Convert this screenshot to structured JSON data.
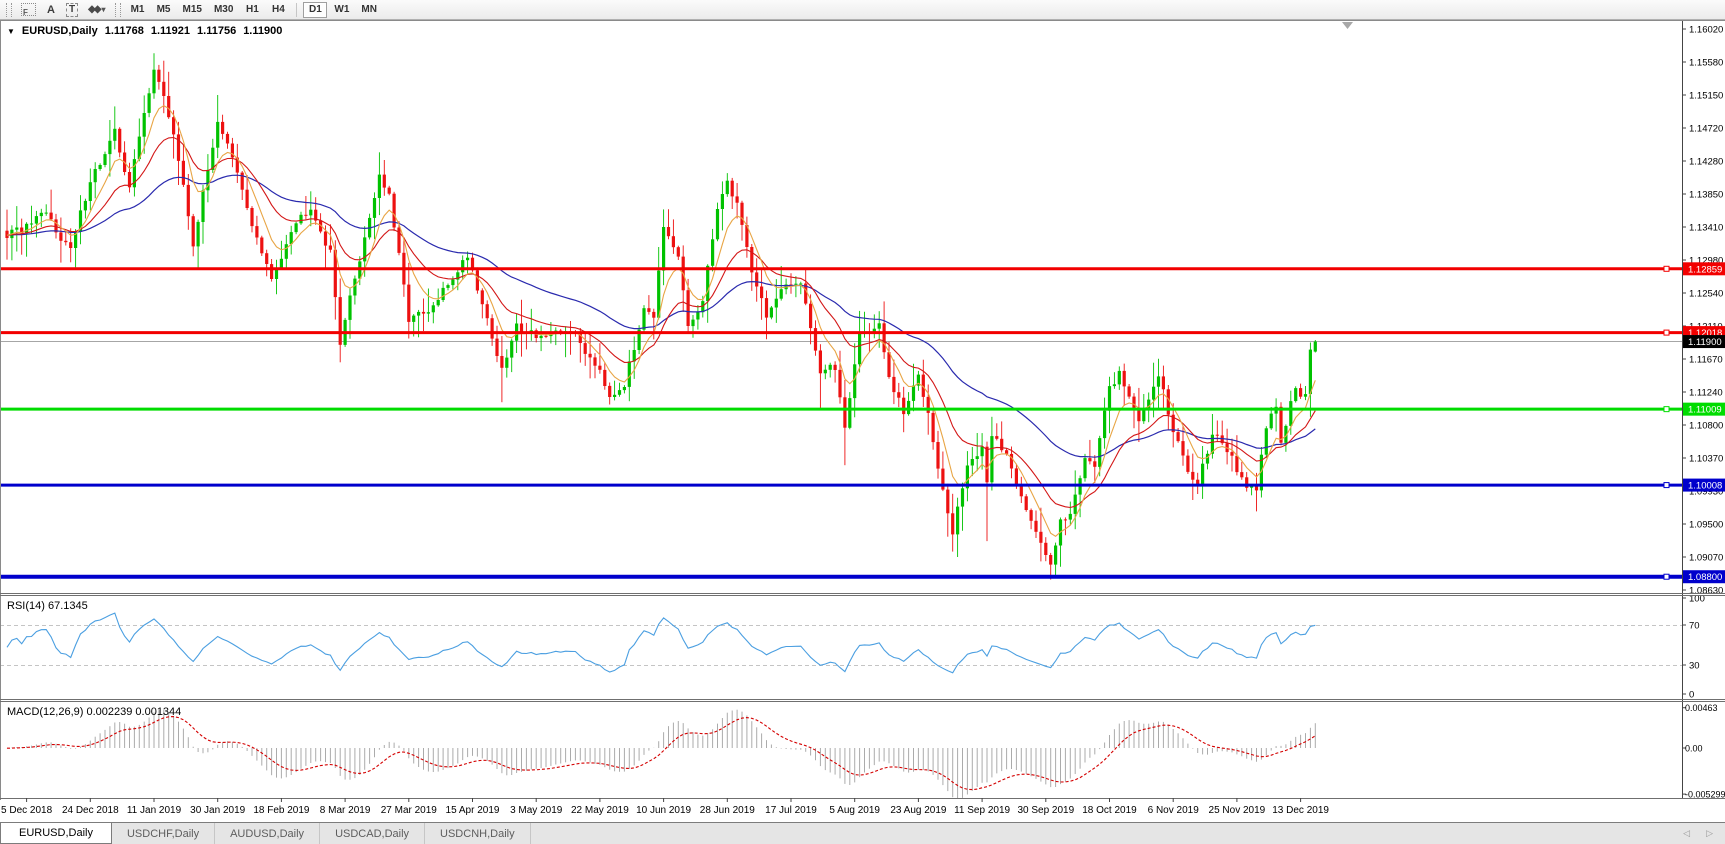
{
  "toolbar": {
    "f_icon": "F",
    "a_label": "A",
    "t_label": "T",
    "styler_icon": "◆◆",
    "styler_caret": "▾",
    "timeframes": [
      "M1",
      "M5",
      "M15",
      "M30",
      "H1",
      "H4",
      "D1",
      "W1",
      "MN"
    ],
    "active_timeframe": "D1"
  },
  "chart": {
    "collapse_icon": "▼",
    "symbol_title": "EURUSD,Daily",
    "ohlc": {
      "open": "1.11768",
      "high": "1.11921",
      "low": "1.11756",
      "close": "1.11900"
    },
    "colors": {
      "candle_up": "#00c200",
      "candle_down": "#ed1111",
      "ma_fast": "#e8a545",
      "ma_mid": "#d31717",
      "ma_slow": "#2a2aae",
      "macd_signal": "#d40000",
      "macd_hist": "#ababab",
      "current_line": "#a6a6a6",
      "current_badge_bg": "#000000"
    },
    "price_axis": {
      "top_price": 1.1602,
      "tick_step": 0.00435,
      "ticks": [
        "1.16020",
        "1.15580",
        "1.15150",
        "1.14720",
        "1.14280",
        "1.13850",
        "1.13410",
        "1.12980",
        "1.12540",
        "1.12110",
        "1.11670",
        "1.11240",
        "1.10800",
        "1.10370",
        "1.09930",
        "1.09500",
        "1.09070",
        "1.08630"
      ]
    },
    "hlines": [
      {
        "label": "1.12859",
        "price": 1.12859,
        "color": "#f20000",
        "width": 3
      },
      {
        "label": "1.12018",
        "price": 1.12018,
        "color": "#f20000",
        "width": 3
      },
      {
        "label": "1.11009",
        "price": 1.11009,
        "color": "#00dc00",
        "width": 3
      },
      {
        "label": "1.10008",
        "price": 1.10008,
        "color": "#0000cc",
        "width": 3
      },
      {
        "label": "1.08800",
        "price": 1.088,
        "color": "#0000cc",
        "width": 4
      }
    ],
    "current_price": {
      "label": "1.11900",
      "price": 1.119
    },
    "dates": [
      "5 Dec 2018",
      "24 Dec 2018",
      "11 Jan 2019",
      "30 Jan 2019",
      "18 Feb 2019",
      "8 Mar 2019",
      "27 Mar 2019",
      "15 Apr 2019",
      "3 May 2019",
      "22 May 2019",
      "10 Jun 2019",
      "28 Jun 2019",
      "17 Jul 2019",
      "5 Aug 2019",
      "23 Aug 2019",
      "11 Sep 2019",
      "30 Sep 2019",
      "18 Oct 2019",
      "6 Nov 2019",
      "25 Nov 2019",
      "13 Dec 2019"
    ],
    "candles": {
      "count": 268,
      "anchors": [
        [
          0,
          1.133
        ],
        [
          4,
          1.134
        ],
        [
          8,
          1.1358
        ],
        [
          13,
          1.131
        ],
        [
          17,
          1.1405
        ],
        [
          20,
          1.1436
        ],
        [
          22,
          1.1465
        ],
        [
          25,
          1.1395
        ],
        [
          30,
          1.1553
        ],
        [
          34,
          1.1465
        ],
        [
          38,
          1.132
        ],
        [
          41,
          1.1415
        ],
        [
          43,
          1.1483
        ],
        [
          46,
          1.143
        ],
        [
          51,
          1.1325
        ],
        [
          54,
          1.127
        ],
        [
          58,
          1.134
        ],
        [
          62,
          1.137
        ],
        [
          66,
          1.1305
        ],
        [
          68,
          1.1192
        ],
        [
          72,
          1.13
        ],
        [
          76,
          1.141
        ],
        [
          78,
          1.138
        ],
        [
          82,
          1.1222
        ],
        [
          86,
          1.1226
        ],
        [
          90,
          1.1265
        ],
        [
          94,
          1.1305
        ],
        [
          98,
          1.122
        ],
        [
          101,
          1.115
        ],
        [
          104,
          1.121
        ],
        [
          108,
          1.12
        ],
        [
          111,
          1.1195
        ],
        [
          115,
          1.1207
        ],
        [
          118,
          1.1178
        ],
        [
          121,
          1.1155
        ],
        [
          123,
          1.112
        ],
        [
          126,
          1.1135
        ],
        [
          128,
          1.118
        ],
        [
          130,
          1.124
        ],
        [
          132,
          1.1225
        ],
        [
          134,
          1.1335
        ],
        [
          137,
          1.13
        ],
        [
          139,
          1.121
        ],
        [
          142,
          1.124
        ],
        [
          145,
          1.137
        ],
        [
          147,
          1.1398
        ],
        [
          149,
          1.1373
        ],
        [
          152,
          1.1285
        ],
        [
          155,
          1.1225
        ],
        [
          158,
          1.1255
        ],
        [
          162,
          1.1272
        ],
        [
          166,
          1.115
        ],
        [
          169,
          1.1155
        ],
        [
          171,
          1.108
        ],
        [
          174,
          1.12
        ],
        [
          178,
          1.121
        ],
        [
          180,
          1.114
        ],
        [
          183,
          1.1095
        ],
        [
          186,
          1.1145
        ],
        [
          188,
          1.11
        ],
        [
          191,
          1.0992
        ],
        [
          193,
          1.0936
        ],
        [
          196,
          1.103
        ],
        [
          199,
          1.1045
        ],
        [
          200,
          1.1
        ],
        [
          201,
          1.107
        ],
        [
          204,
          1.104
        ],
        [
          207,
          1.099
        ],
        [
          210,
          1.0935
        ],
        [
          213,
          1.0895
        ],
        [
          215,
          1.096
        ],
        [
          217,
          1.096
        ],
        [
          220,
          1.104
        ],
        [
          222,
          1.103
        ],
        [
          225,
          1.1125
        ],
        [
          227,
          1.115
        ],
        [
          230,
          1.1105
        ],
        [
          231,
          1.108
        ],
        [
          235,
          1.115
        ],
        [
          238,
          1.107
        ],
        [
          241,
          1.102
        ],
        [
          243,
          1.1005
        ],
        [
          246,
          1.107
        ],
        [
          248,
          1.106
        ],
        [
          251,
          1.102
        ],
        [
          253,
          1.1
        ],
        [
          255,
          1.099
        ],
        [
          257,
          1.108
        ],
        [
          259,
          1.11
        ],
        [
          260,
          1.1062
        ],
        [
          263,
          1.113
        ],
        [
          264,
          1.112
        ],
        [
          265,
          1.112
        ],
        [
          266,
          1.1177
        ],
        [
          267,
          1.119
        ]
      ],
      "wicks": [
        {
          "i": 22,
          "high": 1.15
        },
        {
          "i": 30,
          "high": 1.157
        },
        {
          "i": 43,
          "high": 1.1515
        },
        {
          "i": 68,
          "low": 1.1176
        },
        {
          "i": 101,
          "low": 1.111
        },
        {
          "i": 123,
          "low": 1.1107
        },
        {
          "i": 147,
          "high": 1.1412
        },
        {
          "i": 155,
          "low": 1.1193
        },
        {
          "i": 166,
          "low": 1.1101
        },
        {
          "i": 171,
          "low": 1.1027
        },
        {
          "i": 193,
          "low": 1.0926
        },
        {
          "i": 200,
          "low": 1.0927
        },
        {
          "i": 213,
          "low": 1.088
        },
        {
          "i": 243,
          "low": 1.0989
        }
      ]
    },
    "ma_periods": {
      "fast": 7,
      "mid": 18,
      "slow": 48
    }
  },
  "rsi": {
    "label": "RSI(14) 67.1345",
    "period": 14,
    "color": "#4b9fe1",
    "levels": [
      {
        "label": "100",
        "value": 100
      },
      {
        "label": "70",
        "value": 70
      },
      {
        "label": "30",
        "value": 30
      },
      {
        "label": "0",
        "value": 0
      }
    ]
  },
  "macd": {
    "label": "MACD(12,26,9) 0.002239 0.001344",
    "axis": [
      {
        "label": "0.00463",
        "value": 0.00463
      },
      {
        "label": "0.00",
        "value": 0
      },
      {
        "label": "-0.005299",
        "value": -0.005299
      }
    ]
  },
  "tabs": {
    "items": [
      "EURUSD,Daily",
      "USDCHF,Daily",
      "AUDUSD,Daily",
      "USDCAD,Daily",
      "USDCNH,Daily"
    ],
    "active_index": 0,
    "scroll_left_icon": "◁",
    "scroll_right_icon": "▷"
  },
  "chart_data": {
    "type": "candlestick",
    "symbol": "EURUSD",
    "timeframe": "Daily",
    "last_bar": {
      "open": 1.11768,
      "high": 1.11921,
      "low": 1.11756,
      "close": 1.119
    },
    "visible_range": {
      "price_min": 1.0863,
      "price_max": 1.1602,
      "date_start": "5 Dec 2018",
      "date_end": "13 Dec 2019"
    },
    "horizontal_levels": [
      1.12859,
      1.12018,
      1.11009,
      1.10008,
      1.088
    ],
    "indicators": [
      {
        "name": "RSI",
        "period": 14,
        "last_value": 67.1345,
        "levels": [
          70,
          30
        ]
      },
      {
        "name": "MACD",
        "params": [
          12,
          26,
          9
        ],
        "last_macd": 0.002239,
        "last_signal": 0.001344,
        "axis_max": 0.00463,
        "axis_min": -0.005299
      },
      {
        "name": "MA-fast",
        "color_role": "orange"
      },
      {
        "name": "MA-mid",
        "color_role": "red"
      },
      {
        "name": "MA-slow",
        "color_role": "blue"
      }
    ]
  }
}
